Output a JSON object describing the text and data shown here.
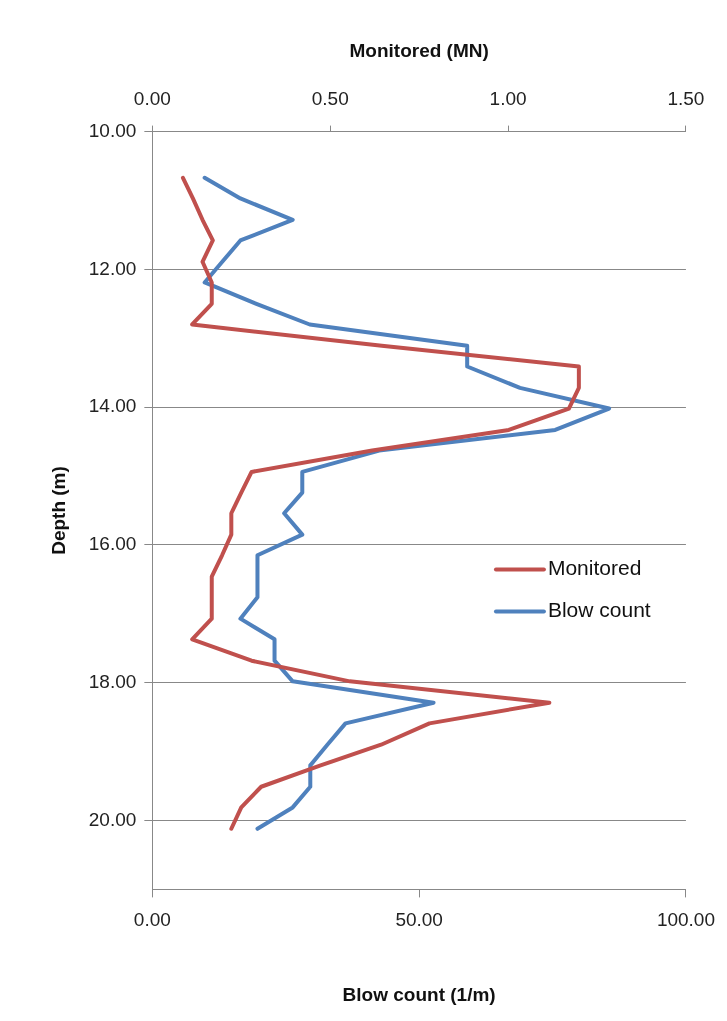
{
  "chart_data": {
    "type": "line",
    "xlabel": "Blow count (1/m)",
    "x2label": "Monitored (MN)",
    "ylabel": "Depth (m)",
    "xlim": [
      0,
      100
    ],
    "xticks": [
      {
        "value": 0,
        "label": "0.00"
      },
      {
        "value": 50,
        "label": "50.00"
      },
      {
        "value": 100,
        "label": "100.00"
      }
    ],
    "x2lim": [
      0,
      1.5
    ],
    "x2ticks": [
      {
        "value": 0,
        "label": "0.00"
      },
      {
        "value": 0.5,
        "label": "0.50"
      },
      {
        "value": 1,
        "label": "1.00"
      },
      {
        "value": 1.5,
        "label": "1.50"
      }
    ],
    "ylim": [
      21,
      10
    ],
    "yticks": [
      {
        "value": 10,
        "label": "10.00"
      },
      {
        "value": 12,
        "label": "12.00"
      },
      {
        "value": 14,
        "label": "14.00"
      },
      {
        "value": 16,
        "label": "16.00"
      },
      {
        "value": 18,
        "label": "18.00"
      },
      {
        "value": 20,
        "label": "20.00"
      }
    ],
    "grid": "y",
    "legend": "right",
    "marker": "none",
    "line_style": "solid",
    "series": [
      {
        "name": "Monitored",
        "color": "#c0504d",
        "axis": "x2",
        "x": [
          0.086,
          0.114,
          0.141,
          0.17,
          0.141,
          0.167,
          0.167,
          0.112,
          0.645,
          1.199,
          1.199,
          1.171,
          1.002,
          0.618,
          0.279,
          0.25,
          0.222,
          0.222,
          0.196,
          0.167,
          0.167,
          0.112,
          0.279,
          0.555,
          1.116,
          0.779,
          0.643,
          0.473,
          0.306,
          0.25,
          0.222
        ],
        "values": [
          10.67,
          10.97,
          11.28,
          11.58,
          11.89,
          12.19,
          12.5,
          12.8,
          13.11,
          13.41,
          13.72,
          14.02,
          14.33,
          14.63,
          14.94,
          15.24,
          15.54,
          15.85,
          16.15,
          16.46,
          17.07,
          17.37,
          17.68,
          17.98,
          18.29,
          18.59,
          18.9,
          19.2,
          19.51,
          19.81,
          20.12
        ]
      },
      {
        "name": "Blow count",
        "color": "#4f81bd",
        "x": [
          9.8,
          16.5,
          26.3,
          16.5,
          13.1,
          9.8,
          19.5,
          29.5,
          59.0,
          59.0,
          68.9,
          85.6,
          75.5,
          42.5,
          28.1,
          28.1,
          24.7,
          28.1,
          19.7,
          19.7,
          16.5,
          22.9,
          22.9,
          26.3,
          52.7,
          36.2,
          32.8,
          29.6,
          29.6,
          26.3,
          19.7
        ],
        "values": [
          10.67,
          10.97,
          11.28,
          11.58,
          11.89,
          12.19,
          12.5,
          12.8,
          13.11,
          13.41,
          13.72,
          14.02,
          14.33,
          14.63,
          14.94,
          15.24,
          15.54,
          15.85,
          16.15,
          16.76,
          17.07,
          17.37,
          17.68,
          17.98,
          18.29,
          18.59,
          18.9,
          19.2,
          19.51,
          19.81,
          20.12
        ]
      }
    ]
  }
}
